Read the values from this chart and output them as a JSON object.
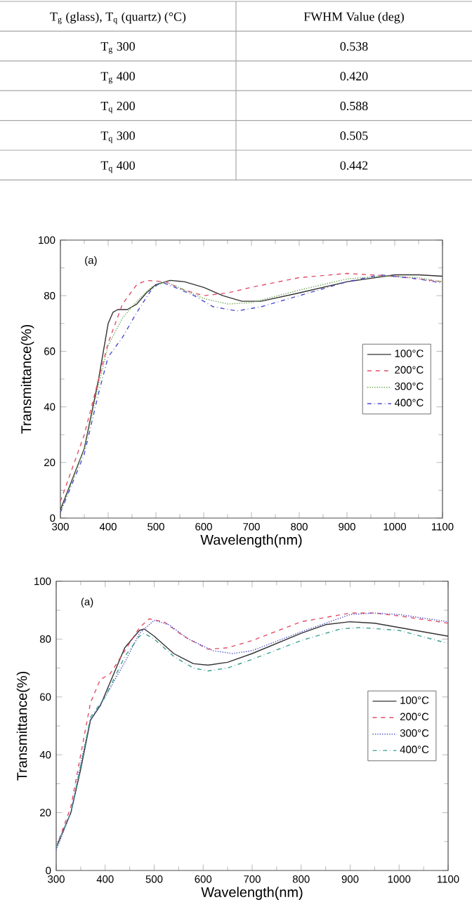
{
  "chart_data": [
    {
      "type": "other",
      "annotations": [
        "T$_{g}$ (glass), T$_{q}$ (quartz) (°C)",
        "FWHM Value  (deg)",
        "T$_{g}$ 300",
        "0.538",
        "T$_{g}$ 400",
        "0.420",
        "T$_{q}$ 200",
        "0.588",
        "T$_{q}$ 300",
        "0.505",
        "T$_{q}$ 400",
        "0.442"
      ]
    },
    {
      "type": "line",
      "xlabel": "Wavelength(nm)",
      "ylabel": "Transmittance(%)",
      "annotations": [
        "(a)"
      ],
      "legend": "right",
      "xlim": [
        300,
        1100
      ],
      "ylim": [
        0,
        100
      ],
      "xticks": [
        300,
        400,
        500,
        600,
        700,
        800,
        900,
        1000,
        1100
      ],
      "yticks": [
        0,
        20,
        40,
        60,
        80,
        100
      ],
      "series": [
        {
          "name": "100°C",
          "color": "#333333",
          "line_style": "solid",
          "x": [
            300,
            350,
            380,
            400,
            410,
            420,
            440,
            460,
            480,
            500,
            530,
            560,
            600,
            640,
            680,
            720,
            800,
            900,
            1000,
            1050,
            1100
          ],
          "values": [
            3,
            25,
            50,
            70,
            74,
            75,
            75,
            77,
            81,
            84,
            85.5,
            85,
            83,
            80,
            78,
            78,
            81,
            85,
            87.5,
            87.5,
            87
          ]
        },
        {
          "name": "200°C",
          "color": "#e0506a",
          "line_style": "dashed",
          "x": [
            300,
            350,
            380,
            400,
            430,
            460,
            480,
            520,
            560,
            600,
            650,
            700,
            800,
            900,
            950,
            1000,
            1100
          ],
          "values": [
            6,
            30,
            50,
            63,
            77,
            84,
            85.5,
            85,
            82,
            80,
            81,
            83,
            86.5,
            88,
            87.5,
            87,
            85
          ]
        },
        {
          "name": "300°C",
          "color": "#6aa84f",
          "line_style": "dotted",
          "x": [
            300,
            350,
            380,
            400,
            430,
            460,
            490,
            520,
            560,
            600,
            650,
            700,
            800,
            900,
            970,
            1050,
            1100
          ],
          "values": [
            2,
            25,
            48,
            62,
            72,
            78,
            83,
            85,
            82,
            79,
            77,
            77.5,
            82,
            86,
            87,
            86.5,
            85
          ]
        },
        {
          "name": "400°C",
          "color": "#4b4bd0",
          "line_style": "dashdotted",
          "x": [
            300,
            350,
            380,
            400,
            430,
            460,
            490,
            510,
            540,
            580,
            620,
            670,
            720,
            800,
            900,
            970,
            1050,
            1100
          ],
          "values": [
            2,
            23,
            45,
            58,
            65,
            74,
            82,
            85,
            83,
            80,
            76,
            74.5,
            76,
            80,
            85,
            87.5,
            86,
            84.5
          ]
        }
      ]
    },
    {
      "type": "line",
      "xlabel": "Wavelength(nm)",
      "ylabel": "Transmittance(%)",
      "annotations": [
        "(a)"
      ],
      "legend": "right",
      "xlim": [
        300,
        1100
      ],
      "ylim": [
        0,
        100
      ],
      "xticks": [
        300,
        400,
        500,
        600,
        700,
        800,
        900,
        1000,
        1100
      ],
      "yticks": [
        0,
        20,
        40,
        60,
        80,
        100
      ],
      "series": [
        {
          "name": "100°C",
          "color": "#333333",
          "line_style": "solid",
          "x": [
            300,
            330,
            350,
            370,
            390,
            410,
            440,
            470,
            480,
            500,
            540,
            580,
            610,
            650,
            700,
            800,
            850,
            900,
            950,
            1000,
            1050,
            1100
          ],
          "values": [
            8,
            20,
            35,
            52,
            57,
            65,
            77,
            83,
            83.5,
            81,
            75,
            71.5,
            71,
            72,
            75,
            82,
            85,
            86,
            85.5,
            84,
            82.5,
            81
          ]
        },
        {
          "name": "200°C",
          "color": "#e0506a",
          "line_style": "dashed",
          "x": [
            300,
            330,
            350,
            370,
            390,
            410,
            440,
            470,
            490,
            520,
            560,
            610,
            650,
            700,
            800,
            900,
            950,
            1000,
            1100
          ],
          "values": [
            8,
            22,
            40,
            58,
            66,
            68,
            76,
            84,
            87,
            86,
            81,
            76.5,
            77,
            79.5,
            86,
            89,
            89,
            88,
            85.5
          ]
        },
        {
          "name": "300°C",
          "color": "#5050c8",
          "line_style": "dotted",
          "x": [
            300,
            330,
            350,
            370,
            400,
            440,
            470,
            500,
            530,
            570,
            620,
            660,
            700,
            800,
            900,
            950,
            1000,
            1100
          ],
          "values": [
            7,
            20,
            37,
            52,
            60,
            72,
            82,
            86.5,
            85,
            80,
            76,
            75,
            76,
            82.5,
            88.5,
            89,
            88.5,
            86
          ]
        },
        {
          "name": "400°C",
          "color": "#3aa090",
          "line_style": "dashdotted",
          "x": [
            300,
            330,
            350,
            370,
            400,
            440,
            470,
            480,
            500,
            540,
            580,
            610,
            650,
            700,
            800,
            880,
            920,
            1000,
            1100
          ],
          "values": [
            8,
            20,
            36,
            53,
            60,
            74,
            81,
            82,
            80,
            74,
            70,
            69,
            70,
            73,
            79.5,
            83.5,
            84,
            83,
            78.5
          ]
        }
      ]
    }
  ]
}
